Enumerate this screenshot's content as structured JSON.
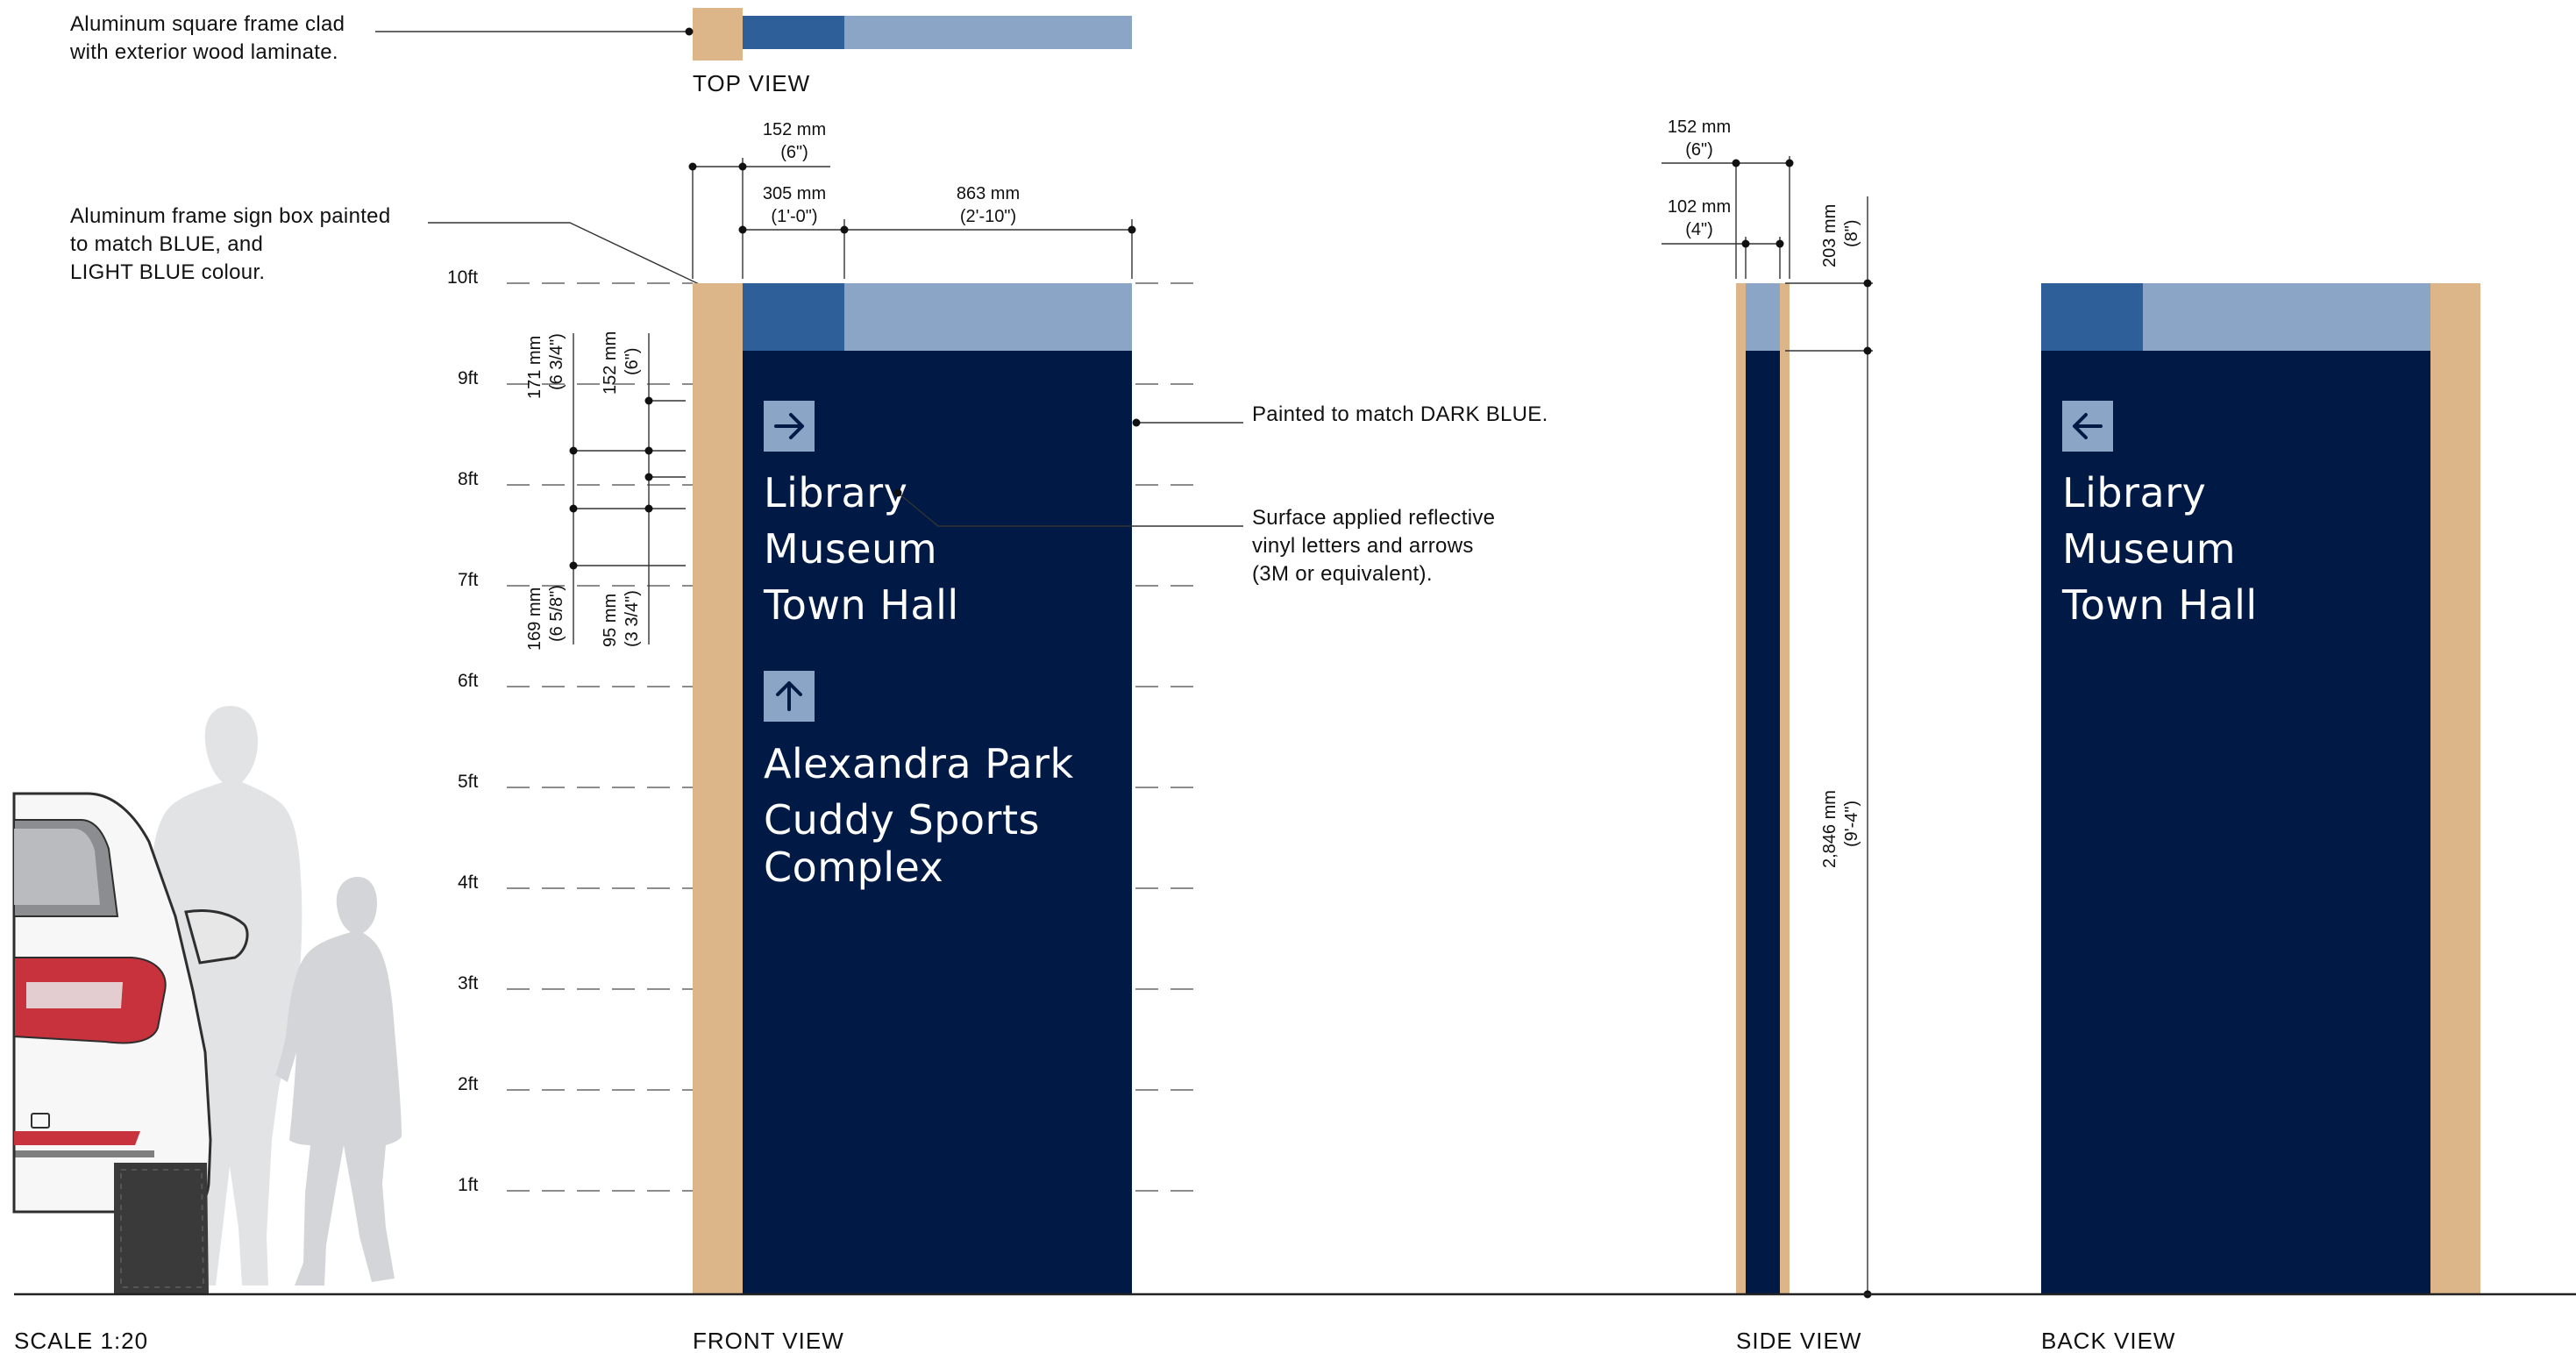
{
  "colors": {
    "dark_blue": "#001a45",
    "blue": "#2f5f99",
    "light_blue": "#8aa5c6",
    "wood": "#dcb689",
    "silhouette": "#e2e3e5"
  },
  "notes": {
    "frame_clad": [
      "Aluminum square frame clad",
      "with exterior wood laminate."
    ],
    "sign_box": [
      "Aluminum frame sign box painted",
      "to match BLUE, and",
      "LIGHT BLUE colour."
    ],
    "dark_blue": "Painted to match DARK BLUE.",
    "vinyl": [
      "Surface applied reflective",
      "vinyl letters and arrows",
      "(3M or equivalent)."
    ]
  },
  "views": {
    "top": "TOP VIEW",
    "front": "FRONT VIEW",
    "side": "SIDE VIEW",
    "back": "BACK VIEW"
  },
  "scale": "SCALE 1:20",
  "height_marks": [
    "10ft",
    "9ft",
    "8ft",
    "7ft",
    "6ft",
    "5ft",
    "4ft",
    "3ft",
    "2ft",
    "1ft"
  ],
  "dimensions": {
    "front_post_width": [
      "152 mm",
      "(6\")"
    ],
    "front_blue_width": [
      "305 mm",
      "(1'-0\")"
    ],
    "front_light_width": [
      "863 mm",
      "(2'-10\")"
    ],
    "side_total": [
      "152 mm",
      "(6\")"
    ],
    "side_box": [
      "102 mm",
      "(4\")"
    ],
    "band_height": [
      "203 mm",
      "(8\")"
    ],
    "total_height": [
      "2,846 mm",
      "(9'-4\")"
    ],
    "left_a": [
      "171 mm",
      "(6 3/4\")"
    ],
    "left_b": [
      "152 mm",
      "(6\")"
    ],
    "left_c": [
      "169 mm",
      "(6 5/8\")"
    ],
    "left_d": [
      "95 mm",
      "(3 3/4\")"
    ]
  },
  "front_sign": {
    "group1_arrow": "arrow-right",
    "group1": [
      "Library",
      "Museum",
      "Town Hall"
    ],
    "group2_arrow": "arrow-up",
    "group2": [
      "Alexandra Park",
      "Cuddy Sports",
      "Complex"
    ]
  },
  "back_sign": {
    "group1_arrow": "arrow-left",
    "group1": [
      "Library",
      "Museum",
      "Town Hall"
    ]
  }
}
